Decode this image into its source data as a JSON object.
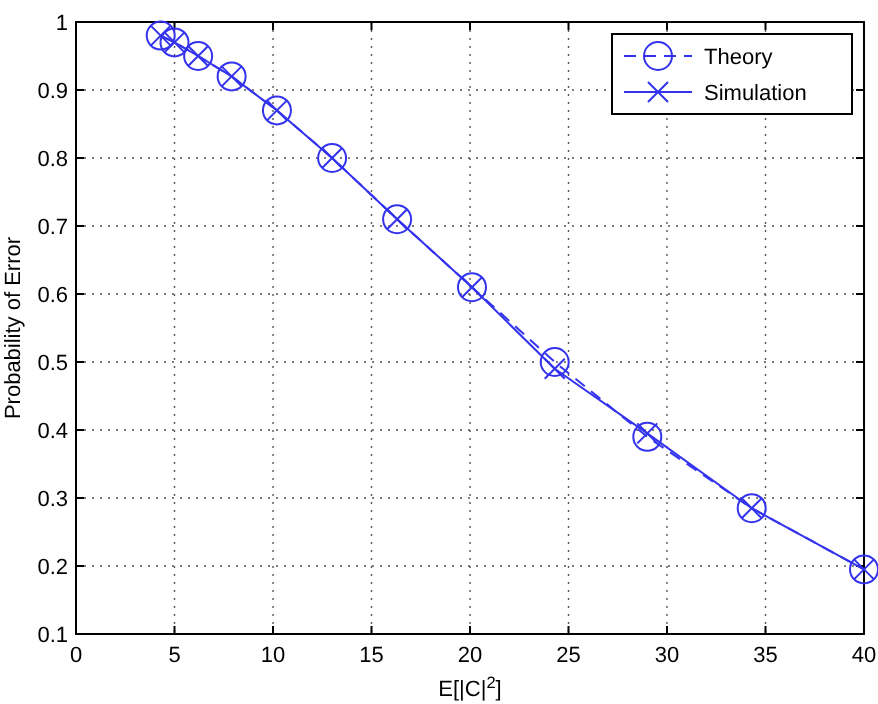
{
  "chart_data": {
    "type": "line",
    "xlabel": "E[|C|$^{2}$]",
    "ylabel": "Probability of Error",
    "xlim": [
      0,
      40
    ],
    "xticks": [
      0,
      5,
      10,
      15,
      20,
      25,
      30,
      35,
      40
    ],
    "ylim": [
      0.1,
      1
    ],
    "yticks": [
      0.1,
      0.2,
      0.3,
      0.4,
      0.5,
      0.6,
      0.7,
      0.8,
      0.9,
      1
    ],
    "grid": true,
    "legend": "top right",
    "series": [
      {
        "name": "Theory",
        "color": "#3333ee",
        "marker": "circle",
        "line_style": "dashed",
        "x": [
          4.3,
          5.0,
          6.2,
          7.9,
          10.2,
          13.0,
          16.3,
          20.1,
          24.3,
          29.0,
          34.3,
          40
        ],
        "values": [
          0.98,
          0.97,
          0.95,
          0.92,
          0.87,
          0.8,
          0.71,
          0.61,
          0.5,
          0.39,
          0.285,
          0.195
        ]
      },
      {
        "name": "Simulation",
        "color": "#3333ee",
        "marker": "cross",
        "line_style": "solid",
        "x": [
          4.3,
          5.0,
          6.2,
          7.9,
          10.2,
          13.0,
          16.3,
          20.1,
          24.3,
          29.0,
          34.3,
          40
        ],
        "values": [
          0.98,
          0.97,
          0.95,
          0.92,
          0.87,
          0.8,
          0.71,
          0.61,
          0.49,
          0.395,
          0.285,
          0.195
        ]
      }
    ]
  }
}
